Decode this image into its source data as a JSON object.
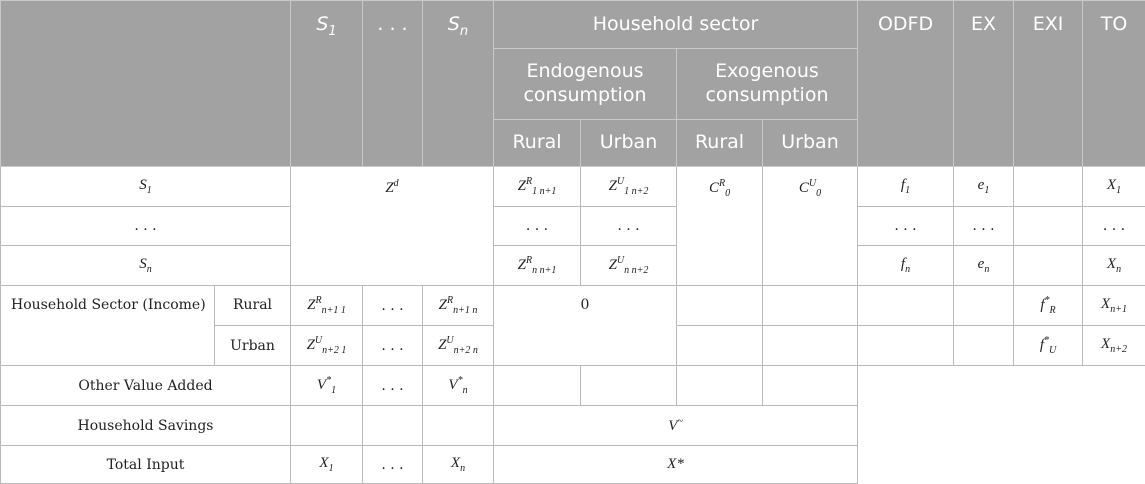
{
  "header": {
    "s1": "S₁",
    "dots": ". . .",
    "sn": "Sₙ",
    "household_sector": "Household sector",
    "odfd": "ODFD",
    "ex": "EX",
    "exi": "EXI",
    "to": "TO",
    "endogenous": "Endogenous consumption",
    "exogenous": "Exogenous consumption",
    "rural": "Rural",
    "urban": "Urban"
  },
  "rows": {
    "s1_label": "S₁",
    "dots_label": ". . .",
    "sn_label": "Sₙ",
    "household_income_label": "Household Sector (Income)",
    "rural": "Rural",
    "urban": "Urban",
    "other_value_added": "Other Value Added",
    "household_savings": "Household Savings",
    "total_input": "Total Input"
  },
  "cells": {
    "zd": "Zᵈ",
    "z1_n1": "Z^R_{1 n+1}",
    "z1_n2": "Z^U_{1 n+2}",
    "c0r": "C^R_0",
    "c0u": "C^U_0",
    "f1": "f₁",
    "e1": "e₁",
    "x1": "X₁",
    "dots": ". . .",
    "zn_n1": "Z^R_{n n+1}",
    "zn_n2": "Z^U_{n n+2}",
    "fn": "fₙ",
    "en": "eₙ",
    "xn": "Xₙ",
    "zn1_1": "Z^R_{n+1 1}",
    "zn1_n": "Z^R_{n+1 n}",
    "zero": "0",
    "fr": "f*_R",
    "xn1": "X_{n+1}",
    "zn2_1": "Z^U_{n+2 1}",
    "zn2_n": "Z^U_{n+2 n}",
    "fu": "f*_U",
    "xn2": "X_{n+2}",
    "v1": "V*_1",
    "vn": "V*_n",
    "vtilde": "V~",
    "x1_total": "X₁",
    "xn_total": "Xₙ",
    "xstar": "X*"
  }
}
